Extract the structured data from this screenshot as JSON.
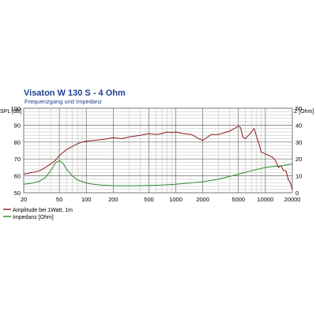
{
  "chart_data": {
    "type": "line",
    "title": "Visaton W 130 S - 4 Ohm",
    "subtitle": "Frequenzgang und Impedanz",
    "ylabel_left": "SPL [dB]",
    "ylabel_right": "Z [Ohm]",
    "x_scale": "log",
    "xlim": [
      20,
      20000
    ],
    "ylim_left": [
      50,
      100
    ],
    "ylim_right": [
      0,
      50
    ],
    "x_ticks": [
      20,
      50,
      100,
      200,
      500,
      1000,
      2000,
      5000,
      10000,
      20000
    ],
    "y_ticks_left": [
      50,
      60,
      70,
      80,
      90,
      100
    ],
    "y_ticks_right": [
      0,
      10,
      20,
      30,
      40,
      50
    ],
    "grid": true,
    "legend_position": "bottom-left",
    "series": [
      {
        "name": "Amplitude bei 1Watt, 1m",
        "color": "#8b1a1a",
        "axis": "left",
        "x": [
          20,
          25,
          30,
          35,
          40,
          45,
          50,
          60,
          70,
          80,
          90,
          100,
          120,
          150,
          200,
          250,
          300,
          400,
          500,
          600,
          700,
          800,
          900,
          1000,
          1200,
          1500,
          1800,
          2000,
          2200,
          2500,
          3000,
          3500,
          4000,
          4500,
          5000,
          5300,
          5600,
          6000,
          6500,
          7000,
          7500,
          8000,
          8500,
          9000,
          10000,
          11000,
          12000,
          13000,
          14000,
          15000,
          16000,
          17000,
          18000,
          19000,
          20000
        ],
        "y": [
          61,
          62,
          63,
          65,
          67,
          69,
          72,
          75.5,
          77.5,
          79,
          80,
          80.5,
          81,
          81.5,
          82.5,
          82,
          83,
          84,
          85,
          84.5,
          85,
          86,
          85.5,
          86,
          85,
          84.5,
          82,
          81,
          82.5,
          84.5,
          84.5,
          85.5,
          86.5,
          88,
          89.5,
          88.5,
          83,
          82,
          84,
          86,
          88,
          83,
          79,
          74,
          73,
          72,
          71,
          69,
          65,
          66,
          63,
          63,
          58,
          56,
          52
        ]
      },
      {
        "name": "Impedanz [Ohm]",
        "color": "#2e8b2e",
        "axis": "right",
        "x": [
          20,
          25,
          30,
          35,
          40,
          45,
          50,
          55,
          60,
          70,
          80,
          100,
          120,
          150,
          200,
          300,
          500,
          700,
          1000,
          2000,
          3000,
          5000,
          7000,
          10000,
          15000,
          20000
        ],
        "y": [
          5,
          5.7,
          6.8,
          9,
          13,
          17.5,
          19,
          17.5,
          14,
          10,
          7.5,
          5.8,
          5,
          4.5,
          4.2,
          4.1,
          4.3,
          4.6,
          5,
          6.5,
          8,
          11,
          13,
          15,
          16,
          17
        ]
      }
    ]
  }
}
